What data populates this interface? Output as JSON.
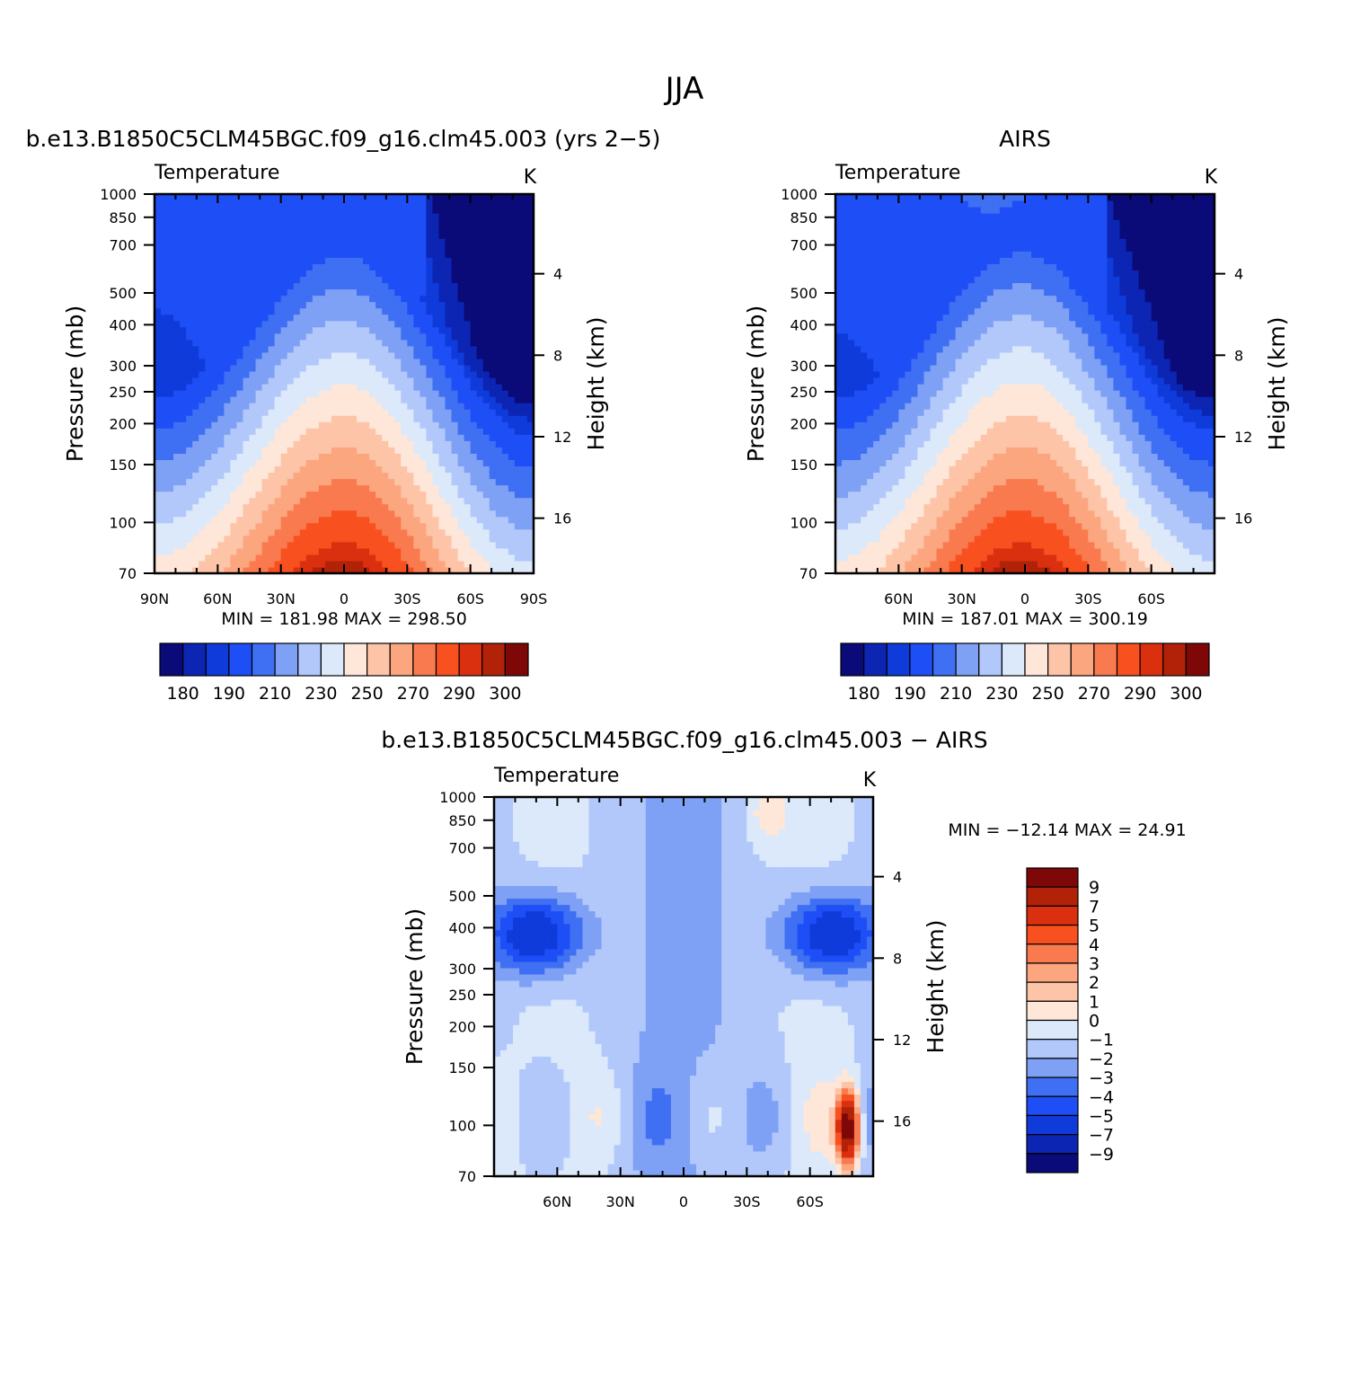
{
  "page": {
    "title": "JJA"
  },
  "colors": {
    "abs_scale": [
      "#0a0a78",
      "#0c25b3",
      "#0f3bdb",
      "#1e4ef5",
      "#3f6ff2",
      "#7ea0f5",
      "#b2c8fb",
      "#dbe9fa",
      "#fee6d8",
      "#fdc4a8",
      "#fca67f",
      "#fa7a4f",
      "#f8501f",
      "#db3010",
      "#b22208",
      "#7e0808"
    ],
    "diff_scale": [
      "#0a0a78",
      "#0c25b3",
      "#0f3bdb",
      "#1e4ef5",
      "#3f6ff2",
      "#7ea0f5",
      "#b2c8fb",
      "#dbe9fa",
      "#fee6d8",
      "#fdc4a8",
      "#fca67f",
      "#fa7a4f",
      "#f8501f",
      "#db3010",
      "#b22208",
      "#7e0808"
    ]
  },
  "chart_data": [
    {
      "id": "model",
      "type": "heatmap",
      "title": "b.e13.B1850C5CLM45BGC.f09_g16.clm45.003 (yrs 2−5)",
      "left_label": "Temperature",
      "right_label": "K",
      "ylabel": "Pressure (mb)",
      "y2label": "Height (km)",
      "y_ticks": [
        "70",
        "100",
        "150",
        "200",
        "250",
        "300",
        "400",
        "500",
        "700",
        "850",
        "1000"
      ],
      "y_tick_values": [
        70,
        100,
        150,
        200,
        250,
        300,
        400,
        500,
        700,
        850,
        1000
      ],
      "y2_ticks": [
        "16",
        "12",
        "8",
        "4"
      ],
      "y2_tick_values": [
        16,
        12,
        8,
        4
      ],
      "x_ticks": [
        "90N",
        "60N",
        "30N",
        "0",
        "30S",
        "60S",
        "90S"
      ],
      "x_tick_values": [
        90,
        60,
        30,
        0,
        -30,
        -60,
        -90
      ],
      "xlim": [
        90,
        -90
      ],
      "ylim": [
        1000,
        70
      ],
      "y_scale": "log",
      "stats": "MIN = 181.98   MAX = 298.50",
      "min": 181.98,
      "max": 298.5,
      "levels": [
        "180",
        "190",
        "210",
        "230",
        "250",
        "270",
        "290",
        "300"
      ],
      "colorbar_orientation": "horizontal"
    },
    {
      "id": "obs",
      "type": "heatmap",
      "title": "AIRS",
      "left_label": "Temperature",
      "right_label": "K",
      "ylabel": "Pressure (mb)",
      "y2label": "Height (km)",
      "y_ticks": [
        "70",
        "100",
        "150",
        "200",
        "250",
        "300",
        "400",
        "500",
        "700",
        "850",
        "1000"
      ],
      "y_tick_values": [
        70,
        100,
        150,
        200,
        250,
        300,
        400,
        500,
        700,
        850,
        1000
      ],
      "y2_ticks": [
        "16",
        "12",
        "8",
        "4"
      ],
      "y2_tick_values": [
        16,
        12,
        8,
        4
      ],
      "x_ticks": [
        "60N",
        "30N",
        "0",
        "30S",
        "60S"
      ],
      "x_tick_values": [
        60,
        30,
        0,
        -30,
        -60
      ],
      "xlim": [
        90,
        -90
      ],
      "ylim": [
        1000,
        70
      ],
      "y_scale": "log",
      "stats": "MIN = 187.01   MAX = 300.19",
      "min": 187.01,
      "max": 300.19,
      "levels": [
        "180",
        "190",
        "210",
        "230",
        "250",
        "270",
        "290",
        "300"
      ],
      "colorbar_orientation": "horizontal"
    },
    {
      "id": "diff",
      "type": "heatmap",
      "title": "b.e13.B1850C5CLM45BGC.f09_g16.clm45.003 − AIRS",
      "left_label": "Temperature",
      "right_label": "K",
      "ylabel": "Pressure (mb)",
      "y2label": "Height (km)",
      "y_ticks": [
        "70",
        "100",
        "150",
        "200",
        "250",
        "300",
        "400",
        "500",
        "700",
        "850",
        "1000"
      ],
      "y_tick_values": [
        70,
        100,
        150,
        200,
        250,
        300,
        400,
        500,
        700,
        850,
        1000
      ],
      "y2_ticks": [
        "16",
        "12",
        "8",
        "4"
      ],
      "y2_tick_values": [
        16,
        12,
        8,
        4
      ],
      "x_ticks": [
        "60N",
        "30N",
        "0",
        "30S",
        "60S"
      ],
      "x_tick_values": [
        60,
        30,
        0,
        -30,
        -60
      ],
      "xlim": [
        90,
        -90
      ],
      "ylim": [
        1000,
        70
      ],
      "y_scale": "log",
      "stats": "MIN = −12.14   MAX =   24.91",
      "min": -12.14,
      "max": 24.91,
      "levels": [
        "9",
        "7",
        "5",
        "4",
        "3",
        "2",
        "1",
        "0",
        "−1",
        "−2",
        "−3",
        "−4",
        "−5",
        "−7",
        "−9"
      ],
      "colorbar_orientation": "vertical"
    }
  ]
}
